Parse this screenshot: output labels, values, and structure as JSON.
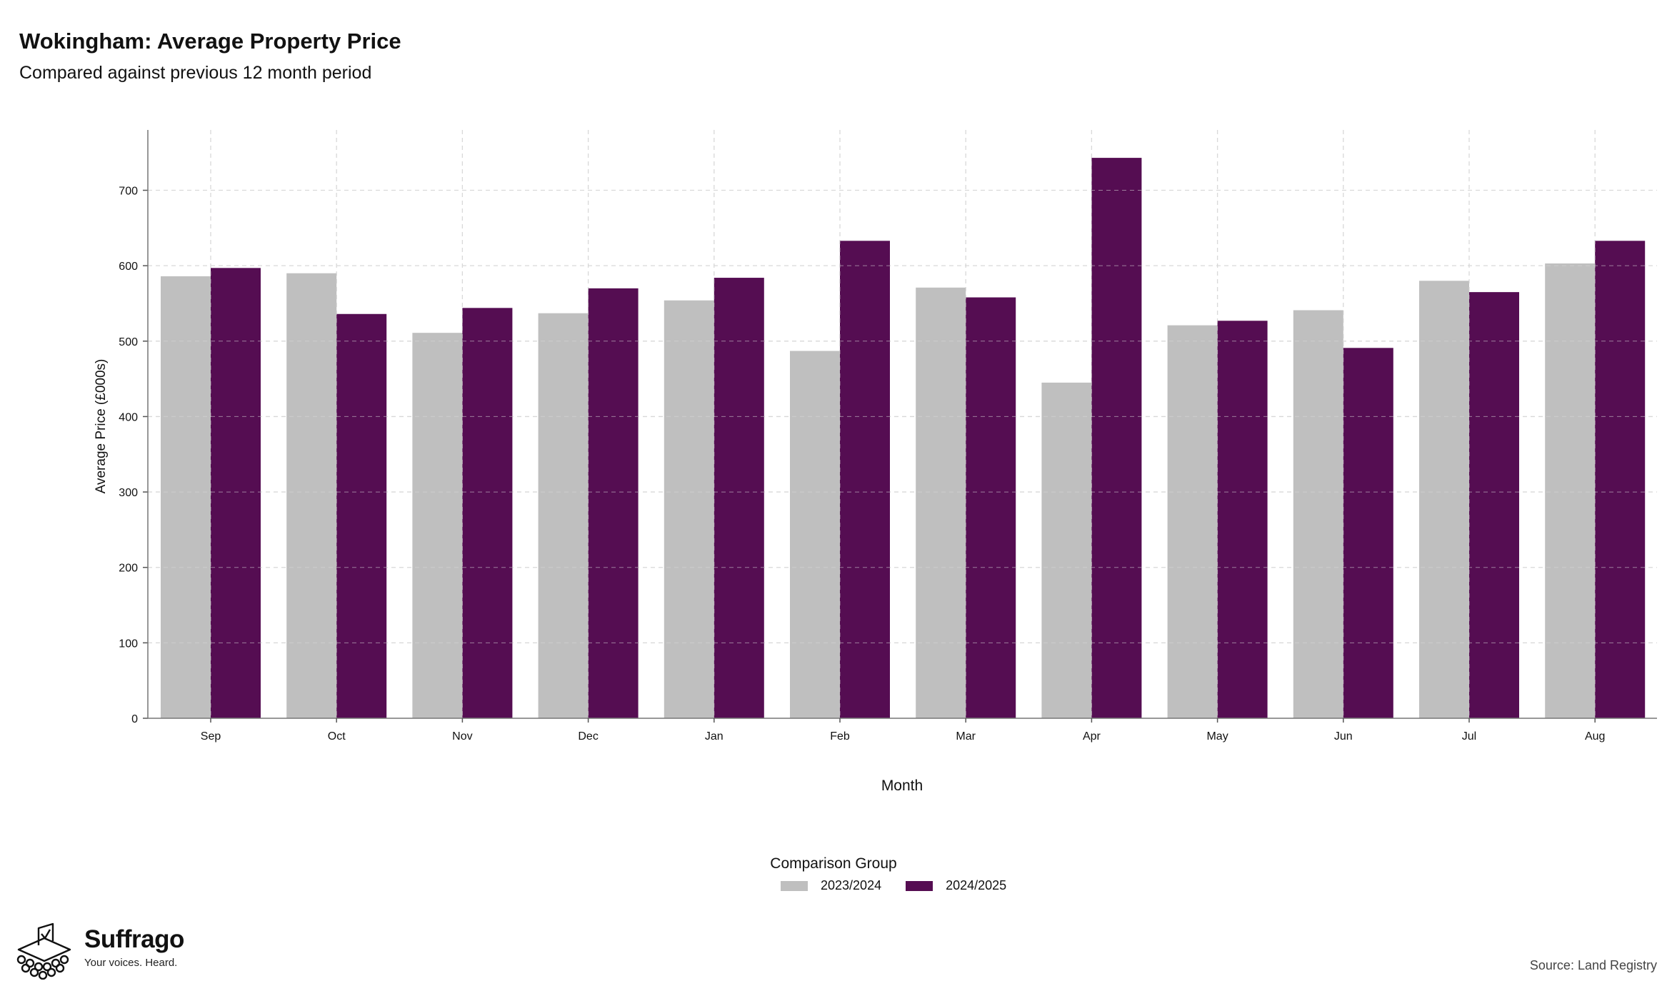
{
  "header": {
    "title": "Wokingham: Average Property Price",
    "subtitle": "Compared against previous 12 month period"
  },
  "chart_data": {
    "type": "bar",
    "categories": [
      "Sep",
      "Oct",
      "Nov",
      "Dec",
      "Jan",
      "Feb",
      "Mar",
      "Apr",
      "May",
      "Jun",
      "Jul",
      "Aug"
    ],
    "series": [
      {
        "name": "2023/2024",
        "color": "#bfbfbf",
        "values": [
          586,
          590,
          511,
          537,
          554,
          487,
          571,
          445,
          521,
          541,
          580,
          603
        ]
      },
      {
        "name": "2024/2025",
        "color": "#550d52",
        "values": [
          597,
          536,
          544,
          570,
          584,
          633,
          558,
          743,
          527,
          491,
          565,
          633
        ]
      }
    ],
    "xlabel": "Month",
    "ylabel": "Average Price (£000s)",
    "ylim": [
      0,
      780
    ],
    "yticks": [
      0,
      100,
      200,
      300,
      400,
      500,
      600,
      700
    ],
    "grid": true,
    "legend_title": "Comparison Group",
    "legend_position": "bottom"
  },
  "branding": {
    "name": "Suffrago",
    "tagline": "Your voices. Heard.",
    "logo_icon": "ballot-box-icon"
  },
  "footer": {
    "source": "Source: Land Registry"
  }
}
